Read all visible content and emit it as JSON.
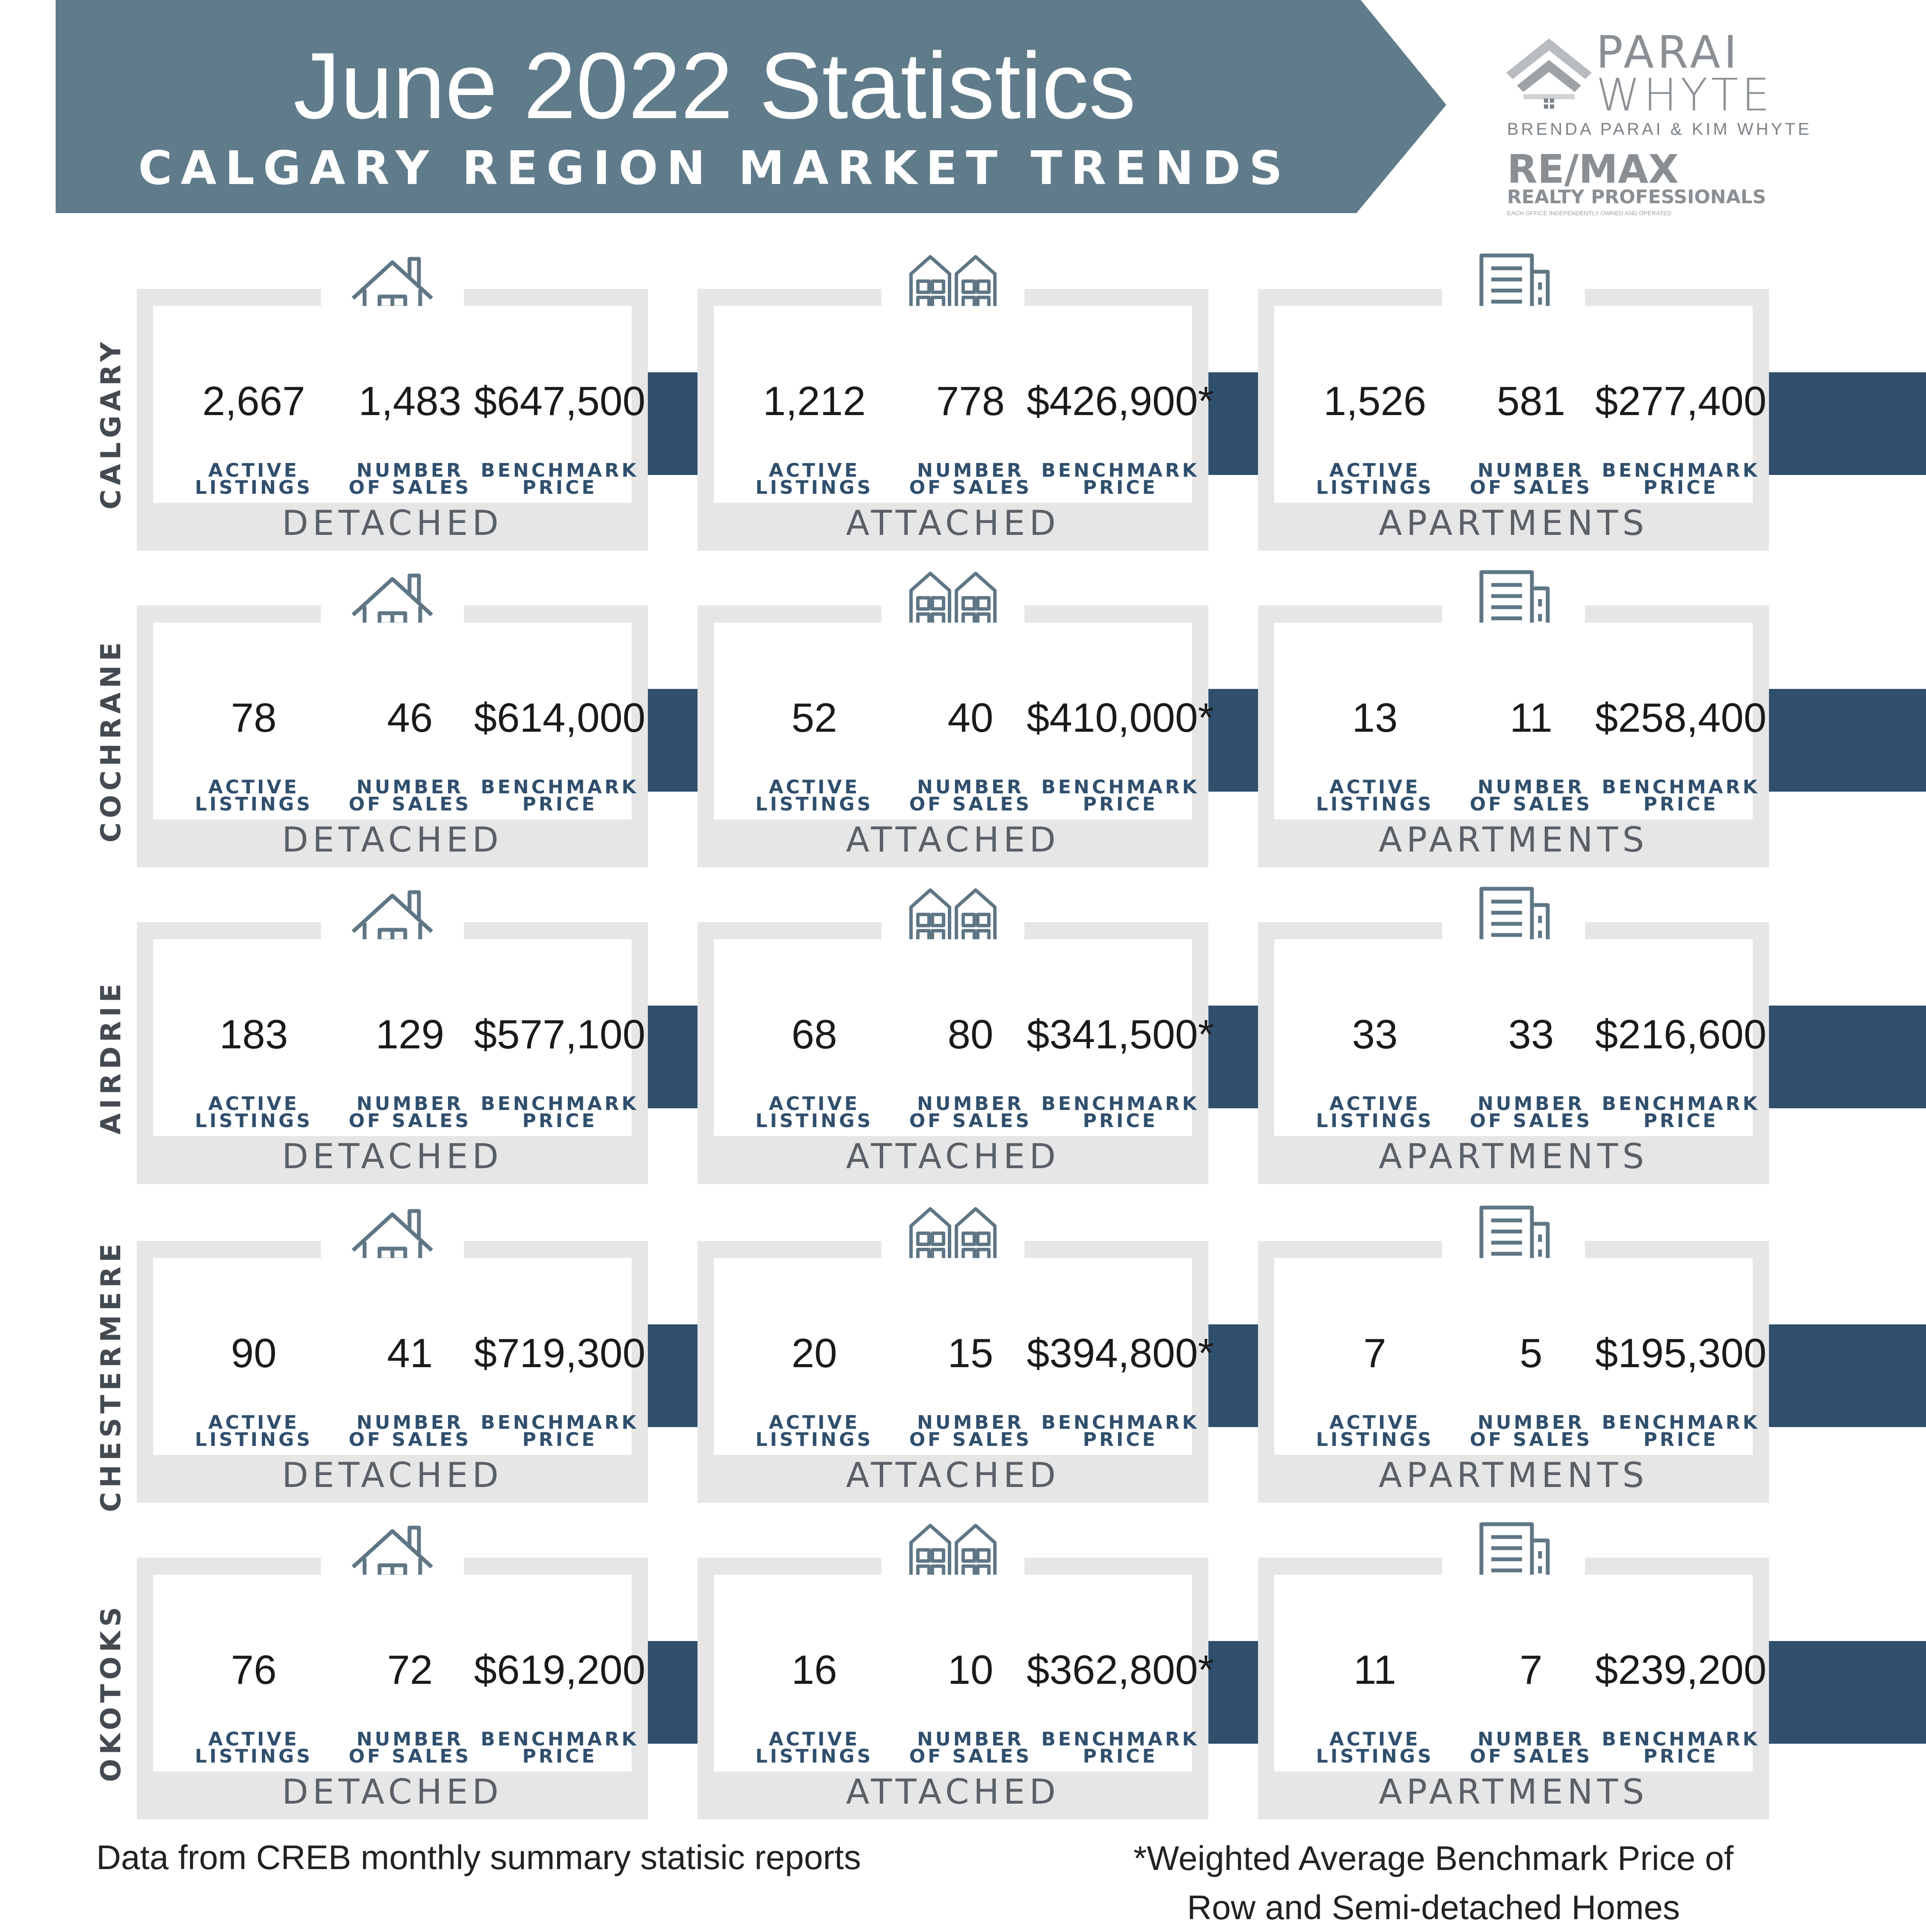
{
  "header": {
    "title": "June 2022 Statistics",
    "subtitle": "CALGARY REGION MARKET TRENDS"
  },
  "logo": {
    "line1": "PARAI",
    "line2": "WHYTE",
    "names": "BRENDA PARAI & KIM WHYTE",
    "brokerage": "RE/MAX",
    "brokerage_sub": "REALTY PROFESSIONALS",
    "fine_print": "EACH OFFICE INDEPENDENTLY OWNED AND OPERATED"
  },
  "labels": {
    "active": [
      "ACTIVE",
      "LISTINGS"
    ],
    "sales": [
      "NUMBER",
      "OF SALES"
    ],
    "price": [
      "BENCHMARK",
      "PRICE"
    ]
  },
  "property_types": [
    "DETACHED",
    "ATTACHED",
    "APARTMENTS"
  ],
  "icons": [
    "house-icon",
    "townhouse-icon",
    "apartment-building-icon"
  ],
  "colors": {
    "banner": "#607c8b",
    "accent": "#304f6d",
    "card_frame": "#e6e6e6",
    "icon_stroke": "#5f7685"
  },
  "regions": [
    {
      "name": "CALGARY",
      "stats": [
        {
          "active": "2,667",
          "sales": "1,483",
          "price": "$647,500"
        },
        {
          "active": "1,212",
          "sales": "778",
          "price": "$426,900*"
        },
        {
          "active": "1,526",
          "sales": "581",
          "price": "$277,400"
        }
      ]
    },
    {
      "name": "COCHRANE",
      "stats": [
        {
          "active": "78",
          "sales": "46",
          "price": "$614,000"
        },
        {
          "active": "52",
          "sales": "40",
          "price": "$410,000*"
        },
        {
          "active": "13",
          "sales": "11",
          "price": "$258,400"
        }
      ]
    },
    {
      "name": "AIRDRIE",
      "stats": [
        {
          "active": "183",
          "sales": "129",
          "price": "$577,100"
        },
        {
          "active": "68",
          "sales": "80",
          "price": "$341,500*"
        },
        {
          "active": "33",
          "sales": "33",
          "price": "$216,600"
        }
      ]
    },
    {
      "name": "CHESTERMERE",
      "stats": [
        {
          "active": "90",
          "sales": "41",
          "price": "$719,300"
        },
        {
          "active": "20",
          "sales": "15",
          "price": "$394,800*"
        },
        {
          "active": "7",
          "sales": "5",
          "price": "$195,300"
        }
      ]
    },
    {
      "name": "OKOTOKS",
      "stats": [
        {
          "active": "76",
          "sales": "72",
          "price": "$619,200"
        },
        {
          "active": "16",
          "sales": "10",
          "price": "$362,800*"
        },
        {
          "active": "11",
          "sales": "7",
          "price": "$239,200"
        }
      ]
    }
  ],
  "footer": {
    "source": "Data from CREB monthly summary statisic reports",
    "note_line1": "*Weighted Average Benchmark Price of",
    "note_line2": "Row and Semi-detached  Homes"
  }
}
